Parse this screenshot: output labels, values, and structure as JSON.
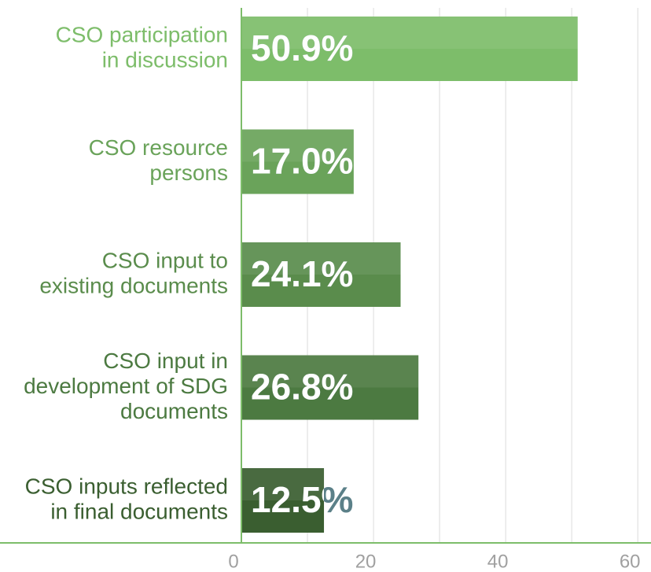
{
  "chart_data": {
    "type": "barh",
    "categories": [
      [
        "CSO participation",
        "in discussion"
      ],
      [
        "CSO resource",
        "persons"
      ],
      [
        "CSO input to",
        "existing documents"
      ],
      [
        "CSO input in",
        "development of SDG",
        "documents"
      ],
      [
        "CSO inputs reflected",
        "in final documents"
      ]
    ],
    "values": [
      50.9,
      17.0,
      24.1,
      26.8,
      12.5
    ],
    "value_labels": [
      "50.9%",
      "17.0%",
      "24.1%",
      "26.8%",
      "12.5%"
    ],
    "colors": [
      "#7dbd6a",
      "#6aa35a",
      "#5a8c4c",
      "#4c7a41",
      "#3a5e30"
    ],
    "overflow_label_color": "#5b8088",
    "xlim": [
      0,
      62
    ],
    "xticks": [
      0,
      20,
      40,
      60
    ],
    "minor_grid": [
      10,
      30,
      50
    ],
    "grid": true
  }
}
